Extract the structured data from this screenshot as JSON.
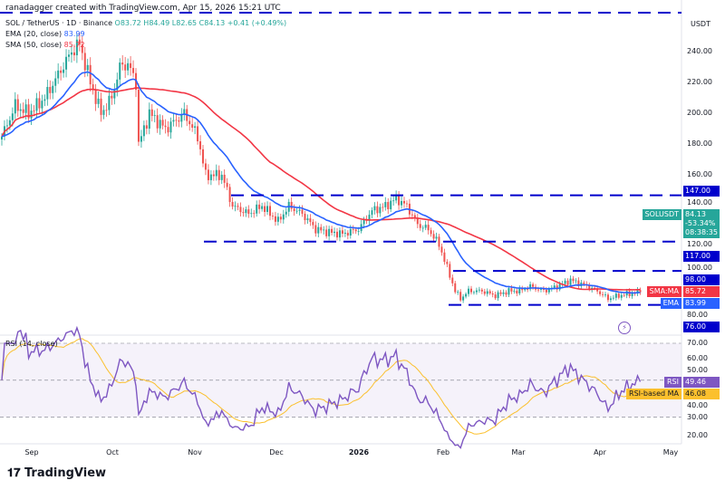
{
  "credit": "ranadagger created with TradingView.com, Apr 15, 2026 15:21 UTC",
  "symbol": "SOL / TetherUS · 1D · Binance",
  "ohlc": {
    "o": "O83.72",
    "h": "H84.49",
    "l": "L82.65",
    "c": "C84.13",
    "chg": "+0.41 (+0.49%)"
  },
  "ema_label": "EMA (20, close)",
  "ema_value": "83.99",
  "sma_label": "SMA (50, close)",
  "sma_value": "85.72",
  "currency": "USDT",
  "tags": {
    "sma": "SMA:MA",
    "sma_v": "85.72",
    "sym": "SOLUSDT",
    "price": "84.13",
    "pct": "-53.34%",
    "timer": "08:38:35",
    "ema": "EMA",
    "ema_v": "83.99",
    "rsi": "RSI",
    "rsi_v": "49.46",
    "rsima": "RSI-based MA",
    "rsima_v": "46.08"
  },
  "rsi_label": "RSI (14, close)",
  "logo": "TradingView",
  "colors": {
    "up": "#26a69a",
    "down": "#ef5350",
    "ema": "#2962ff",
    "sma": "#f23645",
    "rsi": "#7e57c2",
    "rsima": "#fbc02d",
    "level": "#0000cc"
  },
  "chart_data": {
    "type": "candlestick",
    "price_axis": {
      "ticks": [
        240,
        220,
        200,
        180,
        160,
        140,
        120,
        100,
        80
      ]
    },
    "rsi_axis": {
      "ticks": [
        70,
        60,
        50,
        40,
        30,
        20
      ]
    },
    "x_ticks": [
      "Sep",
      "Oct",
      "Nov",
      "Dec",
      "2026",
      "Feb",
      "Mar",
      "Apr",
      "May"
    ],
    "horizontal_levels": [
      147,
      117,
      98,
      76
    ],
    "close_keypoints": [
      [
        "2025-08-20",
        185
      ],
      [
        "2025-08-25",
        205
      ],
      [
        "2025-08-30",
        200
      ],
      [
        "2025-09-05",
        210
      ],
      [
        "2025-09-10",
        225
      ],
      [
        "2025-09-15",
        240
      ],
      [
        "2025-09-18",
        245
      ],
      [
        "2025-09-22",
        220
      ],
      [
        "2025-09-26",
        200
      ],
      [
        "2025-09-30",
        210
      ],
      [
        "2025-10-03",
        230
      ],
      [
        "2025-10-06",
        232
      ],
      [
        "2025-10-09",
        220
      ],
      [
        "2025-10-10",
        180
      ],
      [
        "2025-10-14",
        200
      ],
      [
        "2025-10-20",
        190
      ],
      [
        "2025-10-27",
        200
      ],
      [
        "2025-11-01",
        185
      ],
      [
        "2025-11-04",
        160
      ],
      [
        "2025-11-10",
        160
      ],
      [
        "2025-11-14",
        140
      ],
      [
        "2025-11-20",
        135
      ],
      [
        "2025-11-25",
        140
      ],
      [
        "2025-12-01",
        130
      ],
      [
        "2025-12-05",
        140
      ],
      [
        "2025-12-10",
        135
      ],
      [
        "2025-12-15",
        125
      ],
      [
        "2025-12-20",
        123
      ],
      [
        "2025-12-25",
        122
      ],
      [
        "2025-12-31",
        125
      ],
      [
        "2026-01-05",
        137
      ],
      [
        "2026-01-10",
        140
      ],
      [
        "2026-01-14",
        145
      ],
      [
        "2026-01-18",
        140
      ],
      [
        "2026-01-22",
        128
      ],
      [
        "2026-01-26",
        125
      ],
      [
        "2026-01-30",
        115
      ],
      [
        "2026-02-02",
        100
      ],
      [
        "2026-02-05",
        85
      ],
      [
        "2026-02-07",
        80
      ],
      [
        "2026-02-10",
        85
      ],
      [
        "2026-02-15",
        85
      ],
      [
        "2026-02-20",
        82
      ],
      [
        "2026-02-25",
        85
      ],
      [
        "2026-03-01",
        85
      ],
      [
        "2026-03-05",
        88
      ],
      [
        "2026-03-10",
        85
      ],
      [
        "2026-03-15",
        88
      ],
      [
        "2026-03-20",
        92
      ],
      [
        "2026-03-25",
        89
      ],
      [
        "2026-03-30",
        85
      ],
      [
        "2026-04-03",
        80
      ],
      [
        "2026-04-07",
        82
      ],
      [
        "2026-04-10",
        83
      ],
      [
        "2026-04-15",
        84.13
      ]
    ]
  }
}
